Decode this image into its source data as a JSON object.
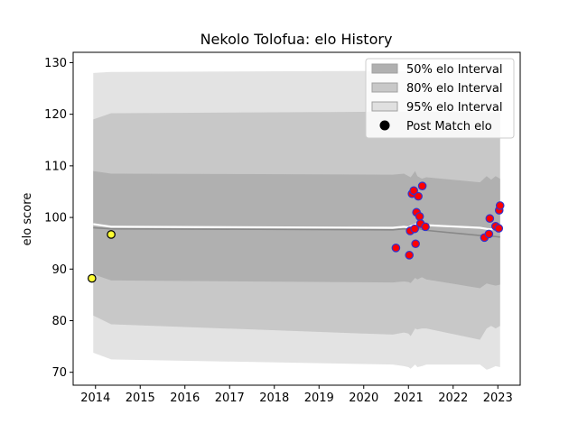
{
  "chart_data": {
    "type": "line",
    "title": "Nekolo Tolofua: elo History",
    "xlabel": "",
    "ylabel": "elo score",
    "xlim": [
      2013.5,
      2023.5
    ],
    "ylim": [
      67.5,
      132
    ],
    "x_ticks": [
      2014,
      2015,
      2016,
      2017,
      2018,
      2019,
      2020,
      2021,
      2022,
      2023
    ],
    "y_ticks": [
      70,
      80,
      90,
      100,
      110,
      120,
      130
    ],
    "legend_position": "top-right",
    "legend": [
      {
        "label": "50% elo Interval",
        "color": "#b0b0b0",
        "kind": "patch"
      },
      {
        "label": "80% elo Interval",
        "color": "#c8c8c8",
        "kind": "patch"
      },
      {
        "label": "95% elo Interval",
        "color": "#e0e0e0",
        "kind": "patch"
      },
      {
        "label": "Post Match elo",
        "color": "#000000",
        "kind": "marker"
      }
    ],
    "intervals": {
      "x": [
        2013.95,
        2014.35,
        2020.65,
        2020.9,
        2021.0,
        2021.05,
        2021.15,
        2021.2,
        2021.3,
        2021.4,
        2022.6,
        2022.75,
        2022.85,
        2022.95,
        2023.05
      ],
      "p95_low": [
        73.8,
        72.5,
        71.5,
        71.2,
        71.0,
        70.7,
        71.5,
        71.0,
        71.2,
        71.5,
        71.5,
        70.5,
        70.8,
        71.2,
        71.0
      ],
      "p95_high": [
        128.0,
        128.2,
        128.4,
        128.4,
        128.3,
        128.4,
        128.4,
        128.4,
        128.3,
        128.4,
        128.4,
        128.5,
        128.4,
        128.4,
        128.5
      ],
      "p80_low": [
        81.0,
        79.3,
        77.3,
        77.7,
        77.5,
        77.0,
        78.5,
        78.3,
        78.5,
        78.5,
        76.3,
        78.5,
        79.0,
        78.5,
        79.0
      ],
      "p80_high": [
        119.0,
        120.2,
        120.5,
        120.5,
        120.4,
        120.3,
        120.5,
        120.7,
        120.6,
        120.5,
        120.3,
        120.4,
        120.3,
        120.2,
        120.3
      ],
      "p50_low": [
        89.0,
        87.8,
        87.4,
        87.6,
        87.5,
        87.3,
        88.3,
        88.0,
        88.4,
        88.0,
        86.3,
        87.2,
        87.0,
        86.8,
        87.0
      ],
      "p50_high": [
        109.0,
        108.5,
        108.3,
        108.5,
        108.0,
        107.8,
        109.0,
        108.0,
        107.5,
        107.8,
        106.8,
        108.0,
        107.3,
        108.0,
        107.5
      ],
      "median": [
        98.0,
        97.8,
        97.6,
        97.8,
        97.7,
        97.8,
        98.0,
        97.9,
        97.7,
        97.5,
        96.5,
        96.5,
        96.4,
        96.3,
        96.2
      ],
      "mean": [
        98.7,
        98.2,
        98.0,
        98.2,
        98.1,
        98.3,
        98.6,
        98.8,
        98.7,
        98.5,
        98.0,
        97.8,
        97.7,
        97.8,
        97.9
      ]
    },
    "points": [
      {
        "x": 2013.92,
        "y": 88.2,
        "style": "early"
      },
      {
        "x": 2014.35,
        "y": 96.7,
        "style": "early"
      },
      {
        "x": 2020.72,
        "y": 94.1,
        "style": "match"
      },
      {
        "x": 2021.02,
        "y": 92.7,
        "style": "match"
      },
      {
        "x": 2021.04,
        "y": 97.4,
        "style": "match"
      },
      {
        "x": 2021.08,
        "y": 104.6,
        "style": "match"
      },
      {
        "x": 2021.12,
        "y": 105.2,
        "style": "match"
      },
      {
        "x": 2021.14,
        "y": 97.8,
        "style": "match"
      },
      {
        "x": 2021.16,
        "y": 94.9,
        "style": "match"
      },
      {
        "x": 2021.18,
        "y": 101.0,
        "style": "match"
      },
      {
        "x": 2021.22,
        "y": 104.1,
        "style": "match"
      },
      {
        "x": 2021.25,
        "y": 100.2,
        "style": "match"
      },
      {
        "x": 2021.27,
        "y": 98.8,
        "style": "match"
      },
      {
        "x": 2021.31,
        "y": 106.1,
        "style": "match"
      },
      {
        "x": 2021.38,
        "y": 98.2,
        "style": "match"
      },
      {
        "x": 2022.7,
        "y": 96.1,
        "style": "match"
      },
      {
        "x": 2022.8,
        "y": 96.8,
        "style": "match"
      },
      {
        "x": 2022.82,
        "y": 99.8,
        "style": "match"
      },
      {
        "x": 2022.95,
        "y": 98.3,
        "style": "match"
      },
      {
        "x": 2023.02,
        "y": 97.9,
        "style": "match"
      },
      {
        "x": 2023.03,
        "y": 101.4,
        "style": "match"
      },
      {
        "x": 2023.05,
        "y": 102.3,
        "style": "match"
      }
    ],
    "colors": {
      "p50": "#b0b0b0",
      "p80": "#c8c8c8",
      "p95": "#e3e3e3",
      "median": "#888888",
      "mean": "#ffffff",
      "match_fill": "#ff0000",
      "match_edge": "#3333cc",
      "early_fill": "#ffff33",
      "early_edge": "#000000"
    }
  }
}
